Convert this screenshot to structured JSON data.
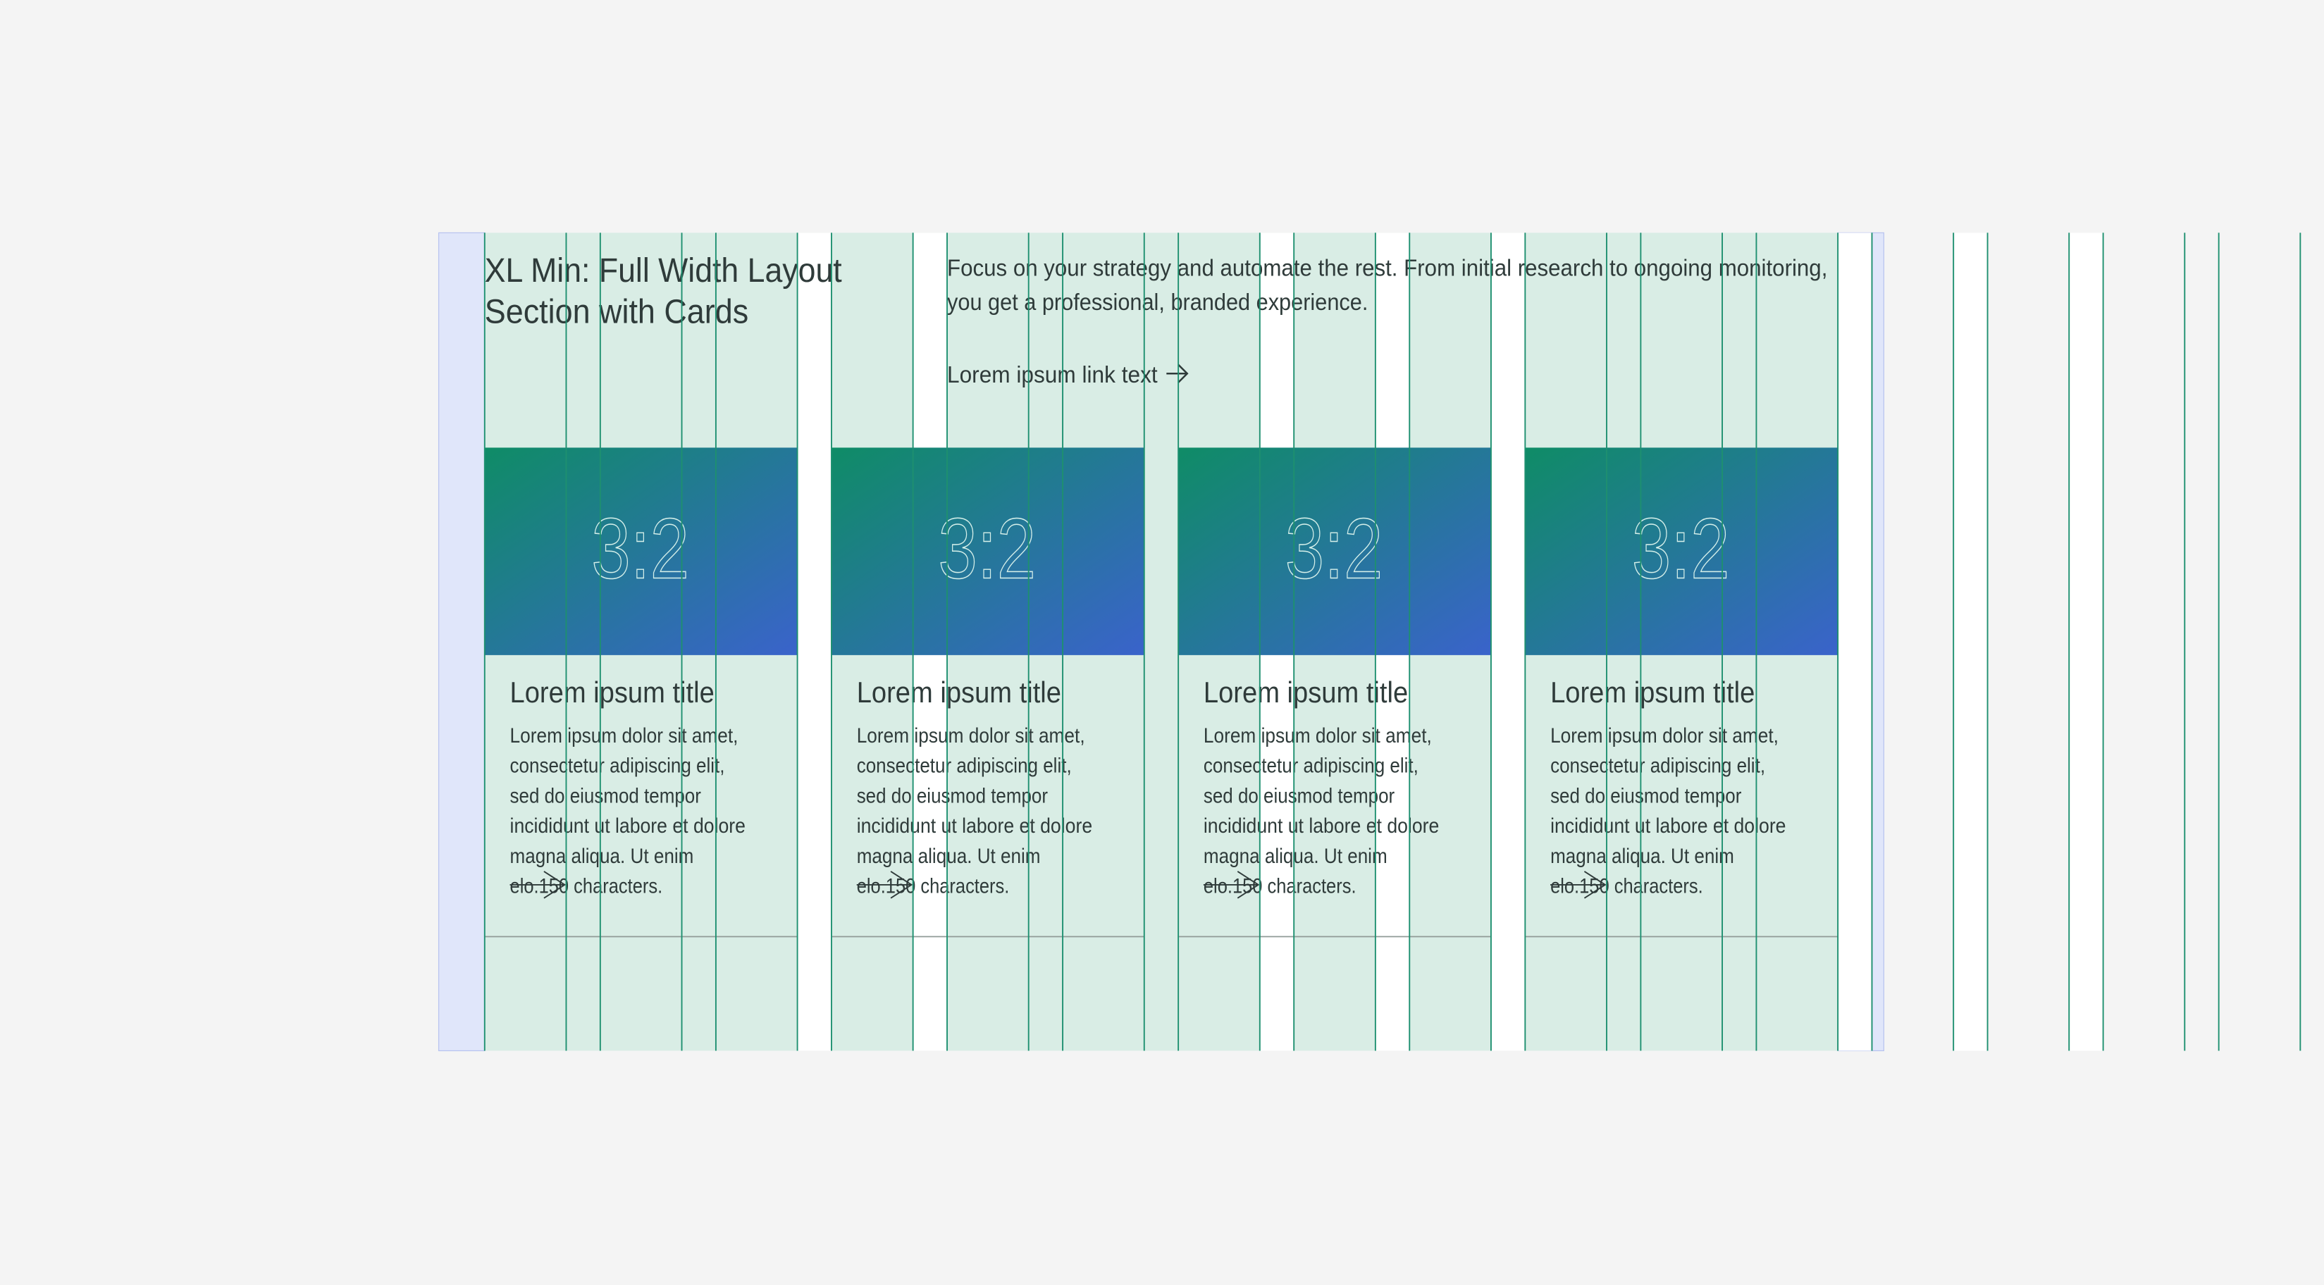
{
  "header": {
    "title_lines": [
      "XL Min: Full Width Layout",
      "Section with Cards"
    ],
    "description_lines": [
      "Focus on your strategy and automate the rest. From initial research to ongoing monitoring,",
      "you get a professional, branded experience."
    ],
    "link": "Lorem ipsum link text"
  },
  "cards": [
    {
      "ratio": "3:2",
      "title": "Lorem ipsum title",
      "body_lines": [
        "Lorem ipsum dolor sit amet,",
        "consectetur adipiscing elit,",
        "sed do eiusmod tempor",
        "incididunt ut labore et dolore",
        "magna aliqua. Ut enim",
        "elo.150 characters."
      ]
    },
    {
      "ratio": "3:2",
      "title": "Lorem ipsum title",
      "body_lines": [
        "Lorem ipsum dolor sit amet,",
        "consectetur adipiscing elit,",
        "sed do eiusmod tempor",
        "incididunt ut labore et dolore",
        "magna aliqua. Ut enim",
        "elo.150 characters."
      ]
    },
    {
      "ratio": "3:2",
      "title": "Lorem ipsum title",
      "body_lines": [
        "Lorem ipsum dolor sit amet,",
        "consectetur adipiscing elit,",
        "sed do eiusmod tempor",
        "incididunt ut labore et dolore",
        "magna aliqua. Ut enim",
        "elo.150 characters."
      ]
    },
    {
      "ratio": "3:2",
      "title": "Lorem ipsum title",
      "body_lines": [
        "Lorem ipsum dolor sit amet,",
        "consectetur adipiscing elit,",
        "sed do eiusmod tempor",
        "incididunt ut labore et dolore",
        "magna aliqua. Ut enim",
        "elo.150 characters."
      ]
    }
  ]
}
